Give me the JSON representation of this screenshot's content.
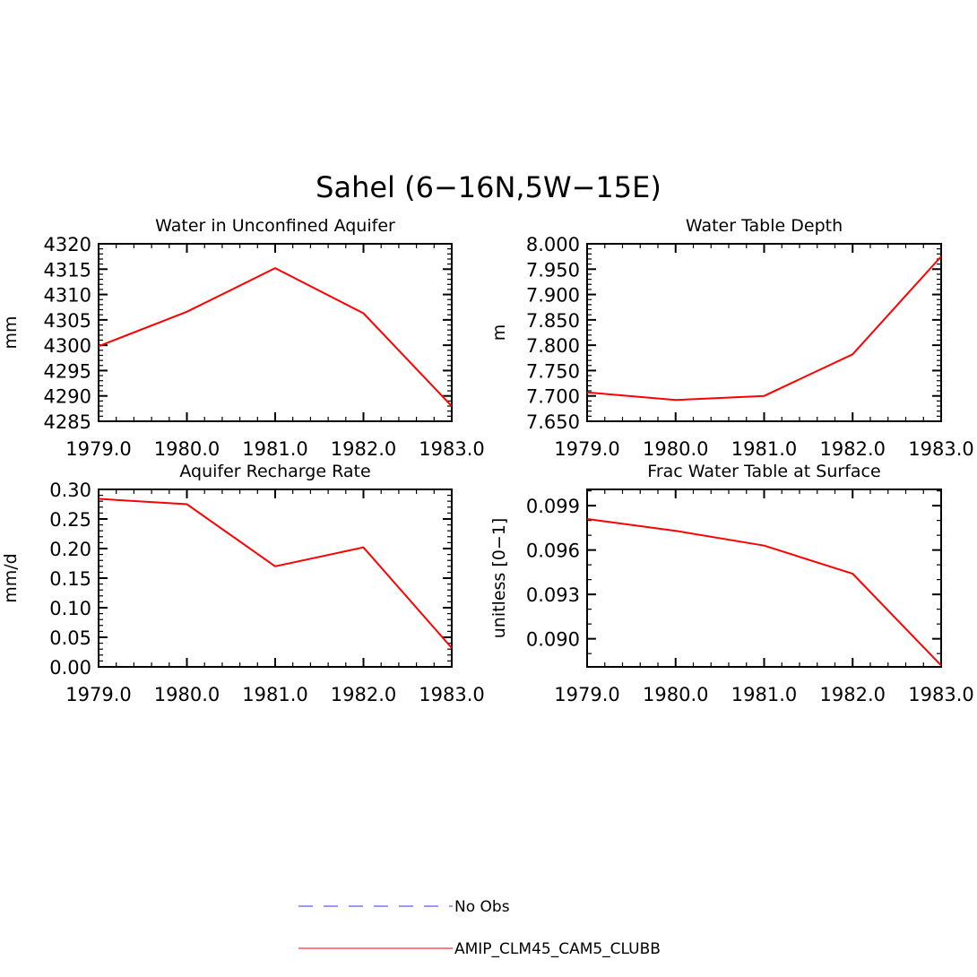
{
  "figure": {
    "title": "Sahel (6−16N,5W−15E)"
  },
  "legend": {
    "placement": "bottom-center",
    "entries": [
      {
        "label": "No Obs",
        "style": "dashed",
        "color": "#7777ff"
      },
      {
        "label": "AMIP_CLM45_CAM5_CLUBB",
        "style": "solid",
        "color": "#ff3333"
      }
    ]
  },
  "colors": {
    "series": "#ff0000",
    "axis": "#000000"
  },
  "chart_data": [
    {
      "type": "line",
      "title": "Water in Unconfined Aquifer",
      "xlabel": "",
      "ylabel": "mm",
      "x": [
        1979,
        1980,
        1981,
        1982,
        1983
      ],
      "xlim": [
        1979,
        1983
      ],
      "xticks": [
        "1979.0",
        "1980.0",
        "1981.0",
        "1982.0",
        "1983.0"
      ],
      "ylim": [
        4285,
        4320
      ],
      "yticks": [
        "4285",
        "4290",
        "4295",
        "4300",
        "4305",
        "4310",
        "4315",
        "4320"
      ],
      "series": [
        {
          "name": "AMIP_CLM45_CAM5_CLUBB",
          "values": [
            4299.8,
            4306.6,
            4315.2,
            4306.3,
            4288.0
          ]
        }
      ],
      "grid": false
    },
    {
      "type": "line",
      "title": "Water Table Depth",
      "xlabel": "",
      "ylabel": "m",
      "x": [
        1979,
        1980,
        1981,
        1982,
        1983
      ],
      "xlim": [
        1979,
        1983
      ],
      "xticks": [
        "1979.0",
        "1980.0",
        "1981.0",
        "1982.0",
        "1983.0"
      ],
      "ylim": [
        7.65,
        8.0
      ],
      "yticks": [
        "7.650",
        "7.700",
        "7.750",
        "7.800",
        "7.850",
        "7.900",
        "7.950",
        "8.000"
      ],
      "series": [
        {
          "name": "AMIP_CLM45_CAM5_CLUBB",
          "values": [
            7.707,
            7.692,
            7.7,
            7.782,
            7.975
          ]
        }
      ],
      "grid": false
    },
    {
      "type": "line",
      "title": "Aquifer Recharge Rate",
      "xlabel": "",
      "ylabel": "mm/d",
      "x": [
        1979,
        1980,
        1981,
        1982,
        1983
      ],
      "xlim": [
        1979,
        1983
      ],
      "xticks": [
        "1979.0",
        "1980.0",
        "1981.0",
        "1982.0",
        "1983.0"
      ],
      "ylim": [
        0.0,
        0.3
      ],
      "yticks": [
        "0.00",
        "0.05",
        "0.10",
        "0.15",
        "0.20",
        "0.25",
        "0.30"
      ],
      "series": [
        {
          "name": "AMIP_CLM45_CAM5_CLUBB",
          "values": [
            0.284,
            0.275,
            0.17,
            0.202,
            0.032
          ]
        }
      ],
      "grid": false
    },
    {
      "type": "line",
      "title": "Frac Water Table at Surface",
      "xlabel": "",
      "ylabel": "unitless [0−1]",
      "x": [
        1979,
        1980,
        1981,
        1982,
        1983
      ],
      "xlim": [
        1979,
        1983
      ],
      "xticks": [
        "1979.0",
        "1980.0",
        "1981.0",
        "1982.0",
        "1983.0"
      ],
      "ylim": [
        0.0881,
        0.1001
      ],
      "yticks": [
        "0.090",
        "0.093",
        "0.096",
        "0.099"
      ],
      "ytick_values": [
        0.09,
        0.093,
        0.096,
        0.099
      ],
      "series": [
        {
          "name": "AMIP_CLM45_CAM5_CLUBB",
          "values": [
            0.0981,
            0.0973,
            0.0963,
            0.0944,
            0.0882
          ]
        }
      ],
      "grid": false
    }
  ]
}
